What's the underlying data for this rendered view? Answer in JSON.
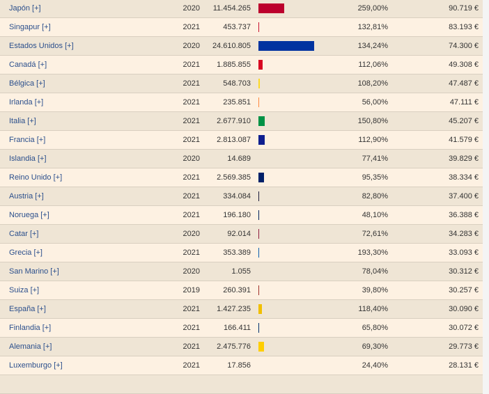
{
  "table": {
    "rows": [
      {
        "country": "Japón [+]",
        "year": "2020",
        "debt": "11.454.265",
        "debt_share": "259,00%",
        "per_capita": "90.719 €",
        "color": "#bc002d"
      },
      {
        "country": "Singapur [+]",
        "year": "2021",
        "debt": "453.737",
        "debt_share": "132,81%",
        "per_capita": "83.193 €",
        "color": "#c8102e"
      },
      {
        "country": "Estados Unidos [+]",
        "year": "2020",
        "debt": "24.610.805",
        "debt_share": "134,24%",
        "per_capita": "74.300 €",
        "color": "#0033a0"
      },
      {
        "country": "Canadá [+]",
        "year": "2021",
        "debt": "1.885.855",
        "debt_share": "112,06%",
        "per_capita": "49.308 €",
        "color": "#d80621"
      },
      {
        "country": "Bélgica [+]",
        "year": "2021",
        "debt": "548.703",
        "debt_share": "108,20%",
        "per_capita": "47.487 €",
        "color": "#fdda24"
      },
      {
        "country": "Irlanda [+]",
        "year": "2021",
        "debt": "235.851",
        "debt_share": "56,00%",
        "per_capita": "47.111 €",
        "color": "#ff883e"
      },
      {
        "country": "Italia [+]",
        "year": "2021",
        "debt": "2.677.910",
        "debt_share": "150,80%",
        "per_capita": "45.207 €",
        "color": "#009246"
      },
      {
        "country": "Francia [+]",
        "year": "2021",
        "debt": "2.813.087",
        "debt_share": "112,90%",
        "per_capita": "41.579 €",
        "color": "#0f1f8f"
      },
      {
        "country": "Islandia [+]",
        "year": "2020",
        "debt": "14.689",
        "debt_share": "77,41%",
        "per_capita": "39.829 €",
        "color": "#02529c"
      },
      {
        "country": "Reino Unido [+]",
        "year": "2021",
        "debt": "2.569.385",
        "debt_share": "95,35%",
        "per_capita": "38.334 €",
        "color": "#012169"
      },
      {
        "country": "Austria [+]",
        "year": "2021",
        "debt": "334.084",
        "debt_share": "82,80%",
        "per_capita": "37.400 €",
        "color": "#1a1a3a"
      },
      {
        "country": "Noruega [+]",
        "year": "2021",
        "debt": "196.180",
        "debt_share": "48,10%",
        "per_capita": "36.388 €",
        "color": "#00205b"
      },
      {
        "country": "Catar [+]",
        "year": "2020",
        "debt": "92.014",
        "debt_share": "72,61%",
        "per_capita": "34.283 €",
        "color": "#8d1b3d"
      },
      {
        "country": "Grecia [+]",
        "year": "2021",
        "debt": "353.389",
        "debt_share": "193,30%",
        "per_capita": "33.093 €",
        "color": "#0d5eaf"
      },
      {
        "country": "San Marino [+]",
        "year": "2020",
        "debt": "1.055",
        "debt_share": "78,04%",
        "per_capita": "30.312 €",
        "color": "#5eb6e4"
      },
      {
        "country": "Suiza [+]",
        "year": "2019",
        "debt": "260.391",
        "debt_share": "39,80%",
        "per_capita": "30.257 €",
        "color": "#a0302a"
      },
      {
        "country": "España [+]",
        "year": "2021",
        "debt": "1.427.235",
        "debt_share": "118,40%",
        "per_capita": "30.090 €",
        "color": "#f1bf00"
      },
      {
        "country": "Finlandia [+]",
        "year": "2021",
        "debt": "166.411",
        "debt_share": "65,80%",
        "per_capita": "30.072 €",
        "color": "#002f6c"
      },
      {
        "country": "Alemania [+]",
        "year": "2021",
        "debt": "2.475.776",
        "debt_share": "69,30%",
        "per_capita": "29.773 €",
        "color": "#ffce00"
      },
      {
        "country": "Luxemburgo [+]",
        "year": "2021",
        "debt": "17.856",
        "debt_share": "24,40%",
        "per_capita": "28.131 €",
        "color": "#00a1de"
      }
    ]
  }
}
